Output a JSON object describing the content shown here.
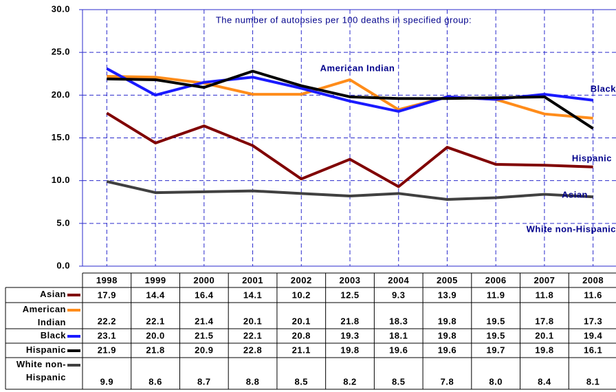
{
  "chart_data": {
    "type": "line",
    "subtitle": "The number of autopsies per 100 deaths in specified group:",
    "categories": [
      "1998",
      "1999",
      "2000",
      "2001",
      "2002",
      "2003",
      "2004",
      "2005",
      "2006",
      "2007",
      "2008"
    ],
    "ylim": [
      0,
      30
    ],
    "yticks": [
      {
        "value": 0,
        "label": "0.0"
      },
      {
        "value": 5,
        "label": "5.0"
      },
      {
        "value": 10,
        "label": "10.0"
      },
      {
        "value": 15,
        "label": "15.0"
      },
      {
        "value": 20,
        "label": "20.0"
      },
      {
        "value": 25,
        "label": "25.0"
      },
      {
        "value": 30,
        "label": "30.0"
      }
    ],
    "grid": true,
    "series": [
      {
        "name": "Asian",
        "color": "#800000",
        "values": [
          17.9,
          14.4,
          16.4,
          14.1,
          10.2,
          12.5,
          9.3,
          13.9,
          11.9,
          11.8,
          11.6
        ],
        "value_labels": [
          "17.9",
          "14.4",
          "16.4",
          "14.1",
          "10.2",
          "12.5",
          "9.3",
          "13.9",
          "11.9",
          "11.8",
          "11.6"
        ]
      },
      {
        "name": "American Indian",
        "color": "#ff8c1a",
        "values": [
          22.2,
          22.1,
          21.4,
          20.1,
          20.1,
          21.8,
          18.3,
          19.8,
          19.5,
          17.8,
          17.3
        ],
        "value_labels": [
          "22.2",
          "22.1",
          "21.4",
          "20.1",
          "20.1",
          "21.8",
          "18.3",
          "19.8",
          "19.5",
          "17.8",
          "17.3"
        ]
      },
      {
        "name": "Black",
        "color": "#1a1aff",
        "values": [
          23.1,
          20,
          21.5,
          22.1,
          20.8,
          19.3,
          18.1,
          19.8,
          19.5,
          20.1,
          19.4
        ],
        "value_labels": [
          "23.1",
          "20.0",
          "21.5",
          "22.1",
          "20.8",
          "19.3",
          "18.1",
          "19.8",
          "19.5",
          "20.1",
          "19.4"
        ]
      },
      {
        "name": "Hispanic",
        "color": "#000000",
        "values": [
          21.9,
          21.8,
          20.9,
          22.8,
          21.1,
          19.8,
          19.6,
          19.6,
          19.7,
          19.8,
          16.1
        ],
        "value_labels": [
          "21.9",
          "21.8",
          "20.9",
          "22.8",
          "21.1",
          "19.8",
          "19.6",
          "19.6",
          "19.7",
          "19.8",
          "16.1"
        ]
      },
      {
        "name": "White non-Hispanic",
        "color": "#404040",
        "values": [
          9.9,
          8.6,
          8.7,
          8.8,
          8.5,
          8.2,
          8.5,
          7.8,
          8,
          8.4,
          8.1
        ],
        "value_labels": [
          "9.9",
          "8.6",
          "8.7",
          "8.8",
          "8.5",
          "8.2",
          "8.5",
          "7.8",
          "8.0",
          "8.4",
          "8.1"
        ]
      }
    ]
  }
}
